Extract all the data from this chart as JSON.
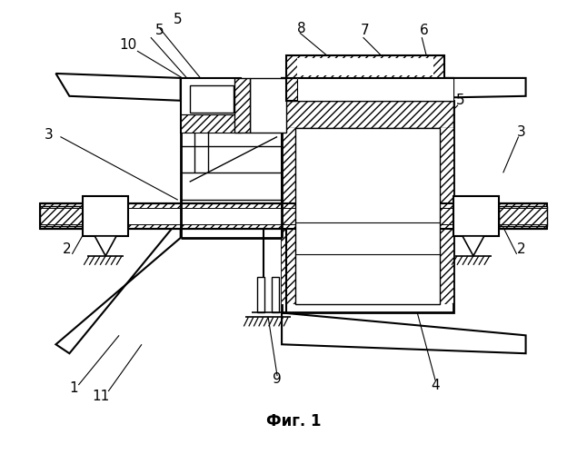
{
  "title": "Фиг. 1",
  "background": "#ffffff",
  "lc": "#000000",
  "fig_width": 6.46,
  "fig_height": 5.0,
  "dpi": 100
}
